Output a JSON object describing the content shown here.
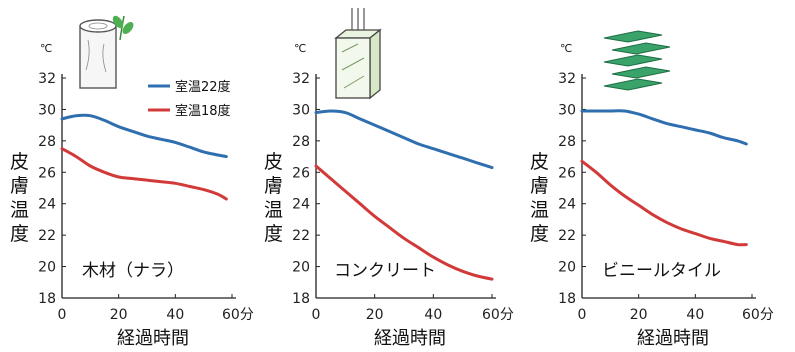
{
  "colors": {
    "series_22": "#2f6fb0",
    "series_18": "#d23a3a",
    "axis": "#222222"
  },
  "chart_data": [
    {
      "type": "line",
      "label": "木材（ナラ）",
      "icon": "wood-log-icon",
      "y_unit": "℃",
      "x_unit": "分",
      "ylabel": "皮膚温度",
      "xlabel": "経過時間",
      "xlim": [
        0,
        60
      ],
      "ylim": [
        18,
        32
      ],
      "x_ticks": [
        "0",
        "20",
        "40",
        "60分"
      ],
      "y_ticks": [
        "18",
        "20",
        "22",
        "24",
        "26",
        "28",
        "30",
        "32"
      ],
      "legend": {
        "placement": "top-right",
        "items": [
          "室温22度",
          "室温18度"
        ]
      },
      "series": [
        {
          "name": "室温22度",
          "color": "#2f6fb0",
          "x": [
            0,
            5,
            10,
            15,
            20,
            25,
            30,
            35,
            40,
            45,
            50,
            55,
            58
          ],
          "y": [
            29.4,
            29.6,
            29.6,
            29.3,
            28.9,
            28.6,
            28.3,
            28.1,
            27.9,
            27.6,
            27.3,
            27.1,
            27.0
          ]
        },
        {
          "name": "室温18度",
          "color": "#d23a3a",
          "x": [
            0,
            5,
            10,
            15,
            20,
            25,
            30,
            35,
            40,
            45,
            50,
            55,
            58
          ],
          "y": [
            27.5,
            27.0,
            26.4,
            26.0,
            25.7,
            25.6,
            25.5,
            25.4,
            25.3,
            25.1,
            24.9,
            24.6,
            24.3
          ]
        }
      ]
    },
    {
      "type": "line",
      "label": "コンクリート",
      "icon": "concrete-block-icon",
      "y_unit": "℃",
      "x_unit": "分",
      "ylabel": "皮膚温度",
      "xlabel": "経過時間",
      "xlim": [
        0,
        60
      ],
      "ylim": [
        18,
        32
      ],
      "x_ticks": [
        "0",
        "20",
        "40",
        "60分"
      ],
      "y_ticks": [
        "18",
        "20",
        "22",
        "24",
        "26",
        "28",
        "30",
        "32"
      ],
      "series": [
        {
          "name": "室温22度",
          "color": "#2f6fb0",
          "x": [
            0,
            5,
            10,
            15,
            20,
            25,
            30,
            35,
            40,
            45,
            50,
            55,
            60
          ],
          "y": [
            29.8,
            29.9,
            29.8,
            29.4,
            29.0,
            28.6,
            28.2,
            27.8,
            27.5,
            27.2,
            26.9,
            26.6,
            26.3
          ]
        },
        {
          "name": "室温18度",
          "color": "#d23a3a",
          "x": [
            0,
            5,
            10,
            15,
            20,
            25,
            30,
            35,
            40,
            45,
            50,
            55,
            60
          ],
          "y": [
            26.4,
            25.6,
            24.8,
            24.0,
            23.2,
            22.5,
            21.8,
            21.2,
            20.6,
            20.1,
            19.7,
            19.4,
            19.2
          ]
        }
      ]
    },
    {
      "type": "line",
      "label": "ビニールタイル",
      "icon": "vinyl-tiles-icon",
      "y_unit": "℃",
      "x_unit": "分",
      "ylabel": "皮膚温度",
      "xlabel": "経過時間",
      "xlim": [
        0,
        60
      ],
      "ylim": [
        18,
        32
      ],
      "x_ticks": [
        "0",
        "20",
        "40",
        "60分"
      ],
      "y_ticks": [
        "18",
        "20",
        "22",
        "24",
        "26",
        "28",
        "30",
        "32"
      ],
      "series": [
        {
          "name": "室温22度",
          "color": "#2f6fb0",
          "x": [
            0,
            5,
            10,
            15,
            20,
            25,
            30,
            35,
            40,
            45,
            50,
            55,
            58
          ],
          "y": [
            29.9,
            29.9,
            29.9,
            29.9,
            29.7,
            29.4,
            29.1,
            28.9,
            28.7,
            28.5,
            28.2,
            28.0,
            27.8
          ]
        },
        {
          "name": "室温18度",
          "color": "#d23a3a",
          "x": [
            0,
            5,
            10,
            15,
            20,
            25,
            30,
            35,
            40,
            45,
            50,
            55,
            58
          ],
          "y": [
            26.7,
            26.0,
            25.2,
            24.5,
            23.9,
            23.3,
            22.8,
            22.4,
            22.1,
            21.8,
            21.6,
            21.4,
            21.4
          ]
        }
      ]
    }
  ]
}
